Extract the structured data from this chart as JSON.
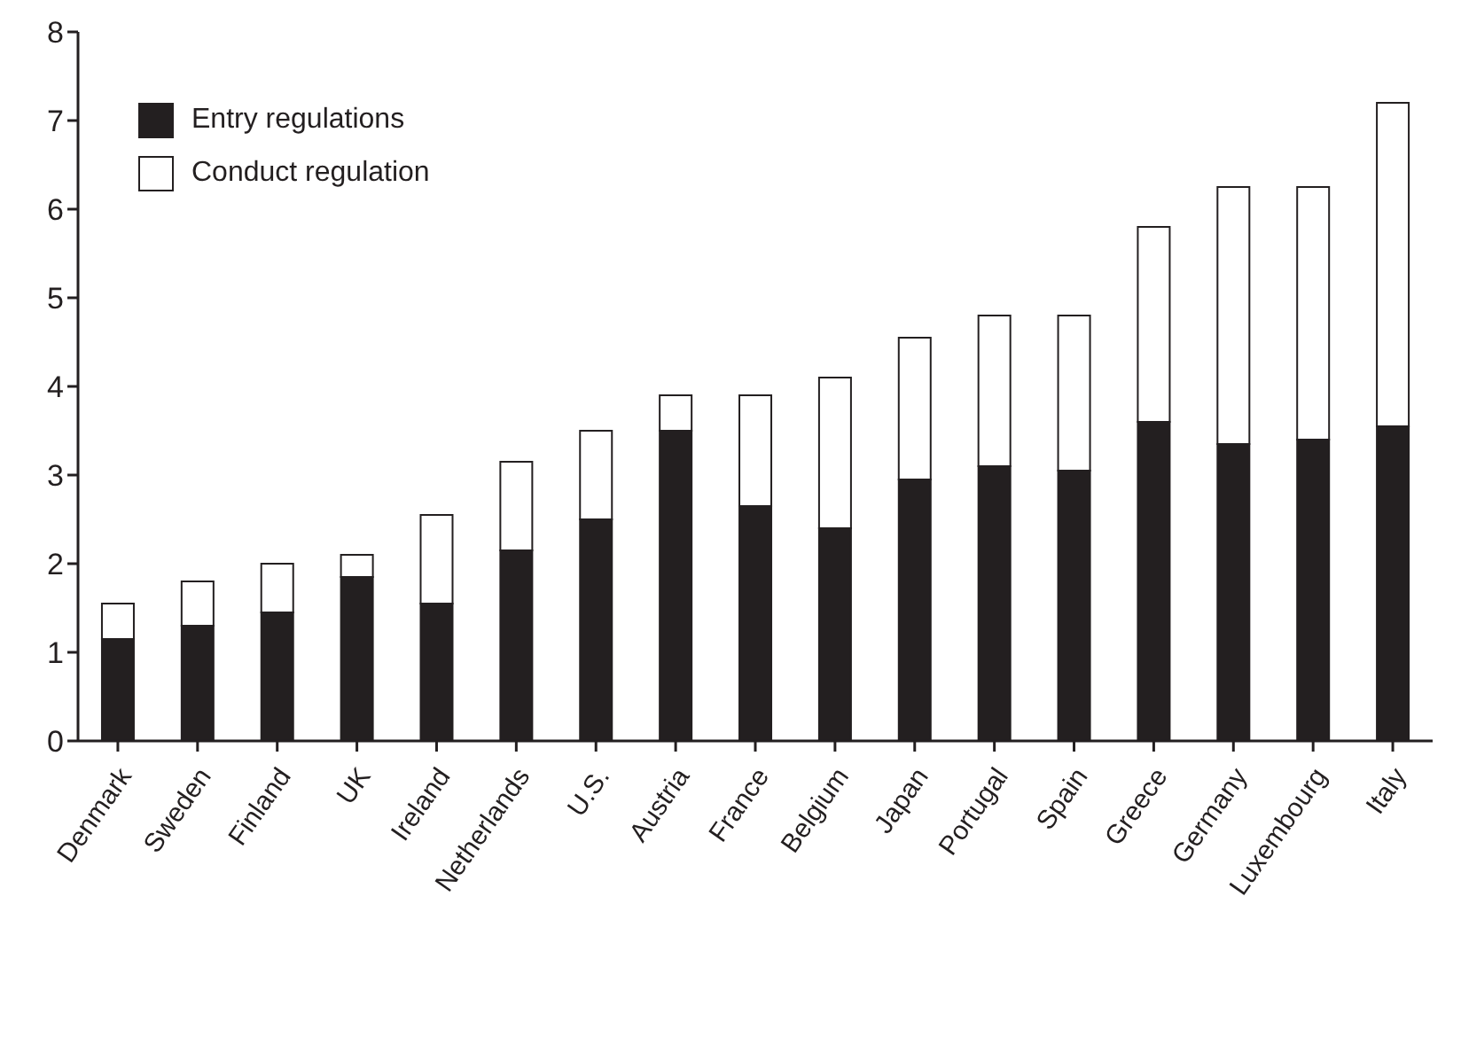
{
  "chart_data": {
    "type": "bar",
    "stacked": true,
    "categories": [
      "Denmark",
      "Sweden",
      "Finland",
      "UK",
      "Ireland",
      "Netherlands",
      "U.S.",
      "Austria",
      "France",
      "Belgium",
      "Japan",
      "Portugal",
      "Spain",
      "Greece",
      "Germany",
      "Luxembourg",
      "Italy"
    ],
    "series": [
      {
        "name": "Entry regulations",
        "color": "#231f20",
        "values": [
          1.15,
          1.3,
          1.45,
          1.85,
          1.55,
          2.15,
          2.5,
          3.5,
          2.65,
          2.4,
          2.95,
          3.1,
          3.05,
          3.6,
          3.35,
          3.4,
          3.55
        ]
      },
      {
        "name": "Conduct regulation",
        "color": "#ffffff",
        "values": [
          0.4,
          0.5,
          0.55,
          0.25,
          1.0,
          1.0,
          1.0,
          0.4,
          1.25,
          1.7,
          1.6,
          1.7,
          1.75,
          2.2,
          2.9,
          2.85,
          3.65
        ]
      }
    ],
    "ylim": [
      0,
      8
    ],
    "yticks": [
      0,
      1,
      2,
      3,
      4,
      5,
      6,
      7,
      8
    ],
    "grid": false,
    "legend": "top left"
  }
}
